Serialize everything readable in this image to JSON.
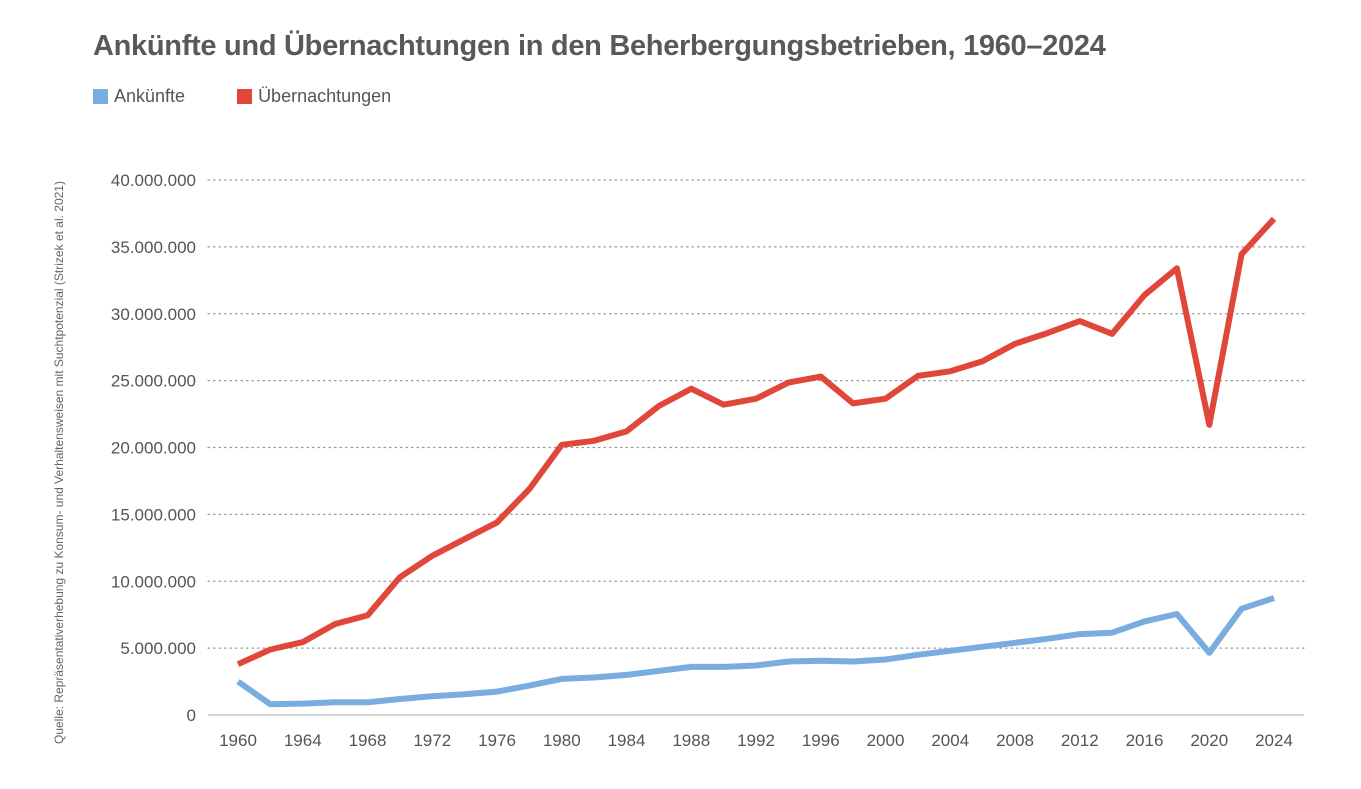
{
  "title": "Ankünfte und Übernachtungen in den Beherbergungsbetrieben, 1960–2024",
  "source": "Quelle: Repräsentativerhebung zu Konsum- und Verhaltensweisen mit Suchtpotenzial (Strizek et al. 2021)",
  "legend": [
    {
      "label": "Ankünfte",
      "color": "#7aaddf"
    },
    {
      "label": "Übernachtungen",
      "color": "#e0473a"
    }
  ],
  "chart_data": {
    "type": "line",
    "title": "Ankünfte und Übernachtungen in den Beherbergungsbetrieben, 1960–2024",
    "xlabel": "",
    "ylabel": "",
    "ylim": [
      0,
      40000000
    ],
    "y_ticks": [
      0,
      5000000,
      10000000,
      15000000,
      20000000,
      25000000,
      30000000,
      35000000,
      40000000
    ],
    "y_tick_labels": [
      "0",
      "5.000.000",
      "10.000.000",
      "15.000.000",
      "20.000.000",
      "25.000.000",
      "30.000.000",
      "35.000.000",
      "40.000.000"
    ],
    "x_tick_labels": [
      "1960",
      "1964",
      "1968",
      "1972",
      "1976",
      "1980",
      "1984",
      "1988",
      "1992",
      "1996",
      "2000",
      "2004",
      "2008",
      "2012",
      "2016",
      "2020",
      "2024"
    ],
    "grid": true,
    "legend_position": "top-left",
    "x": [
      1960,
      1962,
      1964,
      1966,
      1968,
      1970,
      1972,
      1974,
      1976,
      1978,
      1980,
      1982,
      1984,
      1986,
      1988,
      1990,
      1992,
      1994,
      1996,
      1998,
      2000,
      2002,
      2004,
      2006,
      2008,
      2010,
      2012,
      2014,
      2016,
      2018,
      2020,
      2022,
      2024
    ],
    "series": [
      {
        "name": "Ankünfte",
        "color": "#7aaddf",
        "values": [
          2500000,
          800000,
          850000,
          950000,
          950000,
          1200000,
          1400000,
          1550000,
          1750000,
          2200000,
          2700000,
          2800000,
          3000000,
          3300000,
          3600000,
          3600000,
          3700000,
          4000000,
          4050000,
          4000000,
          4150000,
          4500000,
          4800000,
          5100000,
          5400000,
          5700000,
          6050000,
          6150000,
          7000000,
          7550000,
          4650000,
          7950000,
          8750000
        ]
      },
      {
        "name": "Übernachtungen",
        "color": "#e0473a",
        "values": [
          3800000,
          4900000,
          5450000,
          6800000,
          7450000,
          10300000,
          11900000,
          13150000,
          14400000,
          16900000,
          20200000,
          20500000,
          21200000,
          23100000,
          24400000,
          23200000,
          23650000,
          24850000,
          25300000,
          23300000,
          23650000,
          25350000,
          25700000,
          26450000,
          27750000,
          28550000,
          29450000,
          28500000,
          31400000,
          33400000,
          21700000,
          34450000,
          37100000
        ]
      }
    ]
  }
}
